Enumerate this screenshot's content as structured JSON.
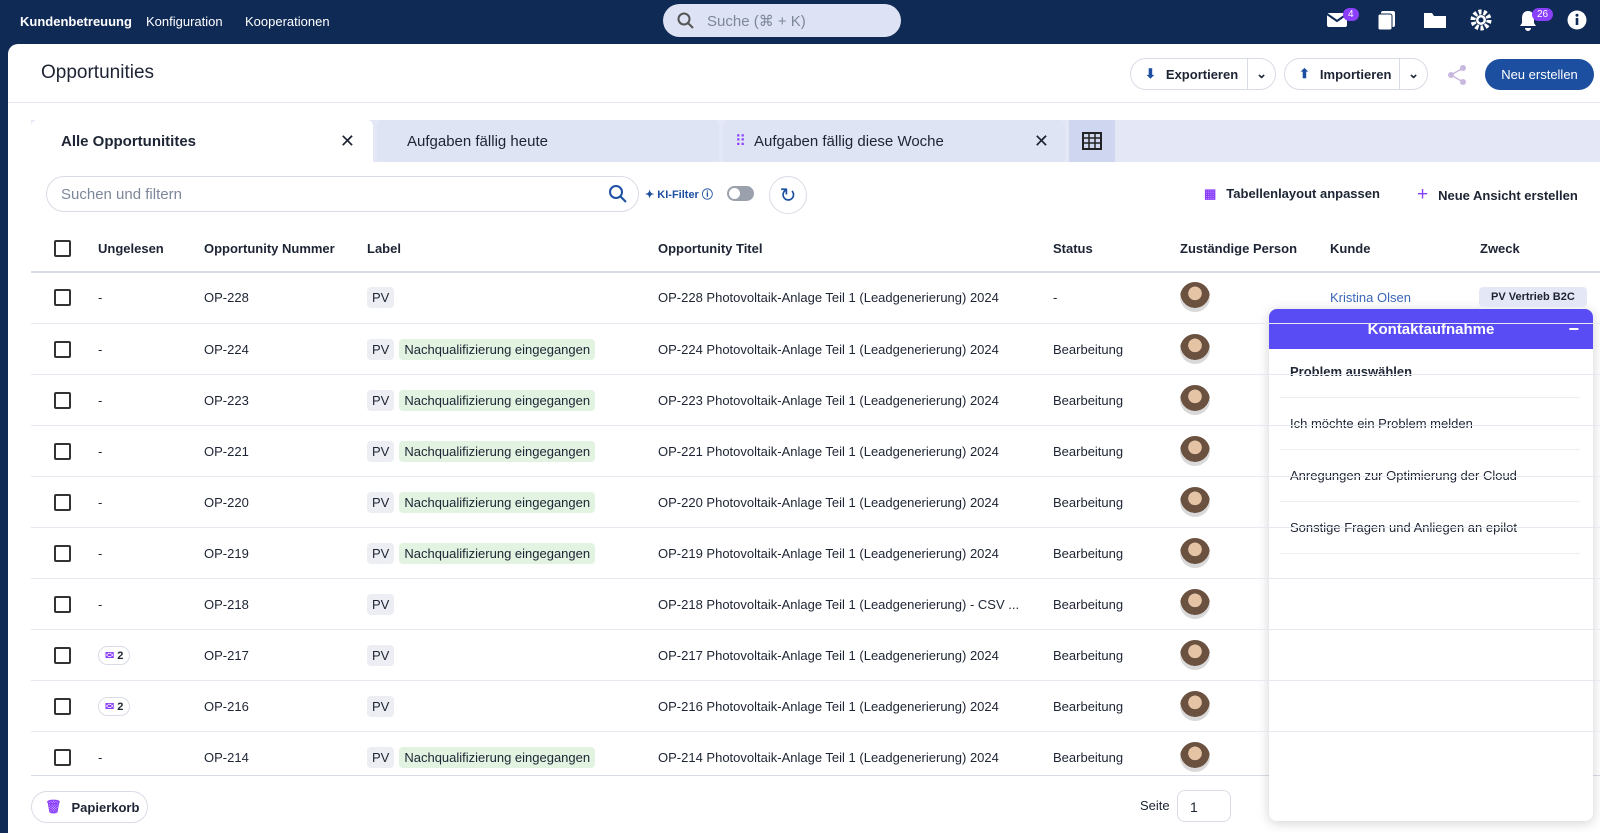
{
  "nav": {
    "brand": "Kundenbetreuung",
    "links": [
      "Konfiguration",
      "Kooperationen"
    ],
    "search_placeholder": "Suche (⌘ + K)",
    "mail_badge": 4,
    "notification_badge": 26
  },
  "header": {
    "title": "Opportunities",
    "export": "Exportieren",
    "import": "Importieren",
    "create": "Neu erstellen"
  },
  "tabs": [
    "Alle Opportunitites",
    "Aufgaben fällig heute",
    "Aufgaben fällig diese Woche"
  ],
  "toolbar": {
    "search_placeholder": "Suchen und filtern",
    "ki_filter": "KI-Filter",
    "layout": "Tabellenlayout anpassen",
    "new_view": "Neue Ansicht erstellen"
  },
  "table": {
    "columns": [
      "Ungelesen",
      "Opportunity Nummer",
      "Label",
      "Opportunity Titel",
      "Status",
      "Zuständige Person",
      "Kunde",
      "Zweck"
    ],
    "rows": [
      {
        "unread": "-",
        "number": "OP-228",
        "labels": [
          "PV"
        ],
        "title": "OP-228 Photovoltaik-Anlage Teil 1 (Leadgenerierung) 2024",
        "status": "-",
        "customer": "Kristina Olsen",
        "purpose": "PV Vertrieb B2C"
      },
      {
        "unread": "-",
        "number": "OP-224",
        "labels": [
          "PV",
          "Nachqualifizierung eingegangen"
        ],
        "title": "OP-224 Photovoltaik-Anlage Teil 1 (Leadgenerierung) 2024",
        "status": "Bearbeitung",
        "customer": null,
        "purpose": null
      },
      {
        "unread": "-",
        "number": "OP-223",
        "labels": [
          "PV",
          "Nachqualifizierung eingegangen"
        ],
        "title": "OP-223 Photovoltaik-Anlage Teil 1 (Leadgenerierung) 2024",
        "status": "Bearbeitung",
        "customer": null,
        "purpose": null
      },
      {
        "unread": "-",
        "number": "OP-221",
        "labels": [
          "PV",
          "Nachqualifizierung eingegangen"
        ],
        "title": "OP-221 Photovoltaik-Anlage Teil 1 (Leadgenerierung) 2024",
        "status": "Bearbeitung",
        "customer": null,
        "purpose": null
      },
      {
        "unread": "-",
        "number": "OP-220",
        "labels": [
          "PV",
          "Nachqualifizierung eingegangen"
        ],
        "title": "OP-220 Photovoltaik-Anlage Teil 1 (Leadgenerierung) 2024",
        "status": "Bearbeitung",
        "customer": null,
        "purpose": null
      },
      {
        "unread": "-",
        "number": "OP-219",
        "labels": [
          "PV",
          "Nachqualifizierung eingegangen"
        ],
        "title": "OP-219 Photovoltaik-Anlage Teil 1 (Leadgenerierung) 2024",
        "status": "Bearbeitung",
        "customer": null,
        "purpose": null
      },
      {
        "unread": "-",
        "number": "OP-218",
        "labels": [
          "PV"
        ],
        "title": "OP-218 Photovoltaik-Anlage Teil 1 (Leadgenerierung) - CSV ...",
        "status": "Bearbeitung",
        "customer": null,
        "purpose": null
      },
      {
        "unread": 2,
        "number": "OP-217",
        "labels": [
          "PV"
        ],
        "title": "OP-217 Photovoltaik-Anlage Teil 1 (Leadgenerierung) 2024",
        "status": "Bearbeitung",
        "customer": null,
        "purpose": null
      },
      {
        "unread": 2,
        "number": "OP-216",
        "labels": [
          "PV"
        ],
        "title": "OP-216 Photovoltaik-Anlage Teil 1 (Leadgenerierung) 2024",
        "status": "Bearbeitung",
        "customer": null,
        "purpose": null
      },
      {
        "unread": "-",
        "number": "OP-214",
        "labels": [
          "PV",
          "Nachqualifizierung eingegangen"
        ],
        "title": "OP-214 Photovoltaik-Anlage Teil 1 (Leadgenerierung) 2024",
        "status": "Bearbeitung",
        "customer": null,
        "purpose": null
      }
    ]
  },
  "footer": {
    "trash": "Papierkorb",
    "page_label": "Seite",
    "page": 1
  },
  "contact_panel": {
    "title": "Kontaktaufnahme",
    "heading": "Problem auswählen",
    "options": [
      "Ich möchte ein Problem melden",
      "Anregungen zur Optimierung der Cloud",
      "Sonstige Fragen und Anliegen an epilot"
    ]
  }
}
